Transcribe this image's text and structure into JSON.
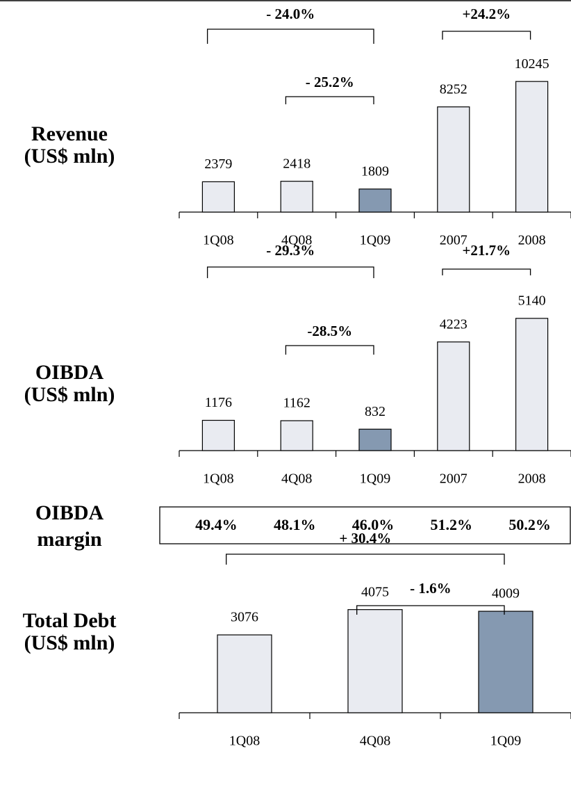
{
  "chart_data": [
    {
      "type": "bar",
      "title": "Revenue",
      "subtitle": "(US$ mln)",
      "categories": [
        "1Q08",
        "4Q08",
        "1Q09",
        "2007",
        "2008"
      ],
      "values": [
        2379,
        2418,
        1809,
        8252,
        10245
      ],
      "colors": [
        "#e9ebf1",
        "#e9ebf1",
        "#8599b1",
        "#e9ebf1",
        "#e9ebf1"
      ],
      "ylim": [
        0,
        12000
      ],
      "annotations": [
        {
          "text": "- 24.0%",
          "from": "1Q08",
          "to": "1Q09"
        },
        {
          "text": "- 25.2%",
          "from": "4Q08",
          "to": "1Q09"
        },
        {
          "text": "+24.2%",
          "from": "2007",
          "to": "2008"
        }
      ]
    },
    {
      "type": "bar",
      "title": "OIBDA",
      "subtitle": "(US$ mln)",
      "categories": [
        "1Q08",
        "4Q08",
        "1Q09",
        "2007",
        "2008"
      ],
      "values": [
        1176,
        1162,
        832,
        4223,
        5140
      ],
      "colors": [
        "#e9ebf1",
        "#e9ebf1",
        "#8599b1",
        "#e9ebf1",
        "#e9ebf1"
      ],
      "ylim": [
        0,
        6000
      ],
      "annotations": [
        {
          "text": "- 29.3%",
          "from": "1Q08",
          "to": "1Q09"
        },
        {
          "text": "-28.5%",
          "from": "4Q08",
          "to": "1Q09"
        },
        {
          "text": "+21.7%",
          "from": "2007",
          "to": "2008"
        }
      ]
    },
    {
      "type": "bar",
      "title": "Total Debt",
      "subtitle": "(US$ mln)",
      "categories": [
        "1Q08",
        "4Q08",
        "1Q09"
      ],
      "values": [
        3076,
        4075,
        4009
      ],
      "colors": [
        "#e9ebf1",
        "#e9ebf1",
        "#8599b1"
      ],
      "ylim": [
        0,
        5000
      ],
      "annotations": [
        {
          "text": "+ 30.4%",
          "from": "1Q08",
          "to": "1Q09"
        },
        {
          "text": "- 1.6%",
          "from": "4Q08",
          "to": "1Q09"
        }
      ]
    }
  ],
  "margin_table": {
    "title": "OIBDA",
    "subtitle": "margin",
    "cells": [
      "49.4%",
      "48.1%",
      "46.0%",
      "51.2%",
      "50.2%"
    ]
  }
}
